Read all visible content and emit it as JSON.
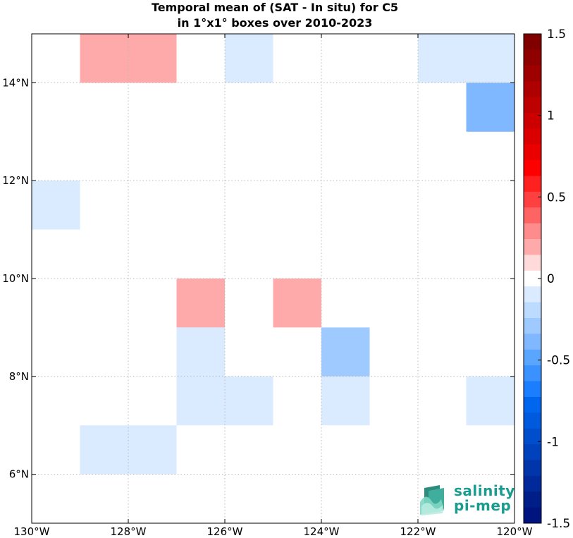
{
  "chart_data": {
    "type": "heatmap",
    "title_line1": "Temporal mean of (SAT - In situ) for C5",
    "title_line2": "in 1°x1° boxes over 2010-2023",
    "x_range": [
      -130,
      -120
    ],
    "y_range": [
      5,
      15
    ],
    "x_ticks": [
      {
        "value": -130,
        "label": "130°W"
      },
      {
        "value": -128,
        "label": "128°W"
      },
      {
        "value": -126,
        "label": "126°W"
      },
      {
        "value": -124,
        "label": "124°W"
      },
      {
        "value": -122,
        "label": "122°W"
      },
      {
        "value": -120,
        "label": "120°W"
      }
    ],
    "y_ticks": [
      {
        "value": 6,
        "label": "6°N"
      },
      {
        "value": 8,
        "label": "8°N"
      },
      {
        "value": 10,
        "label": "10°N"
      },
      {
        "value": 12,
        "label": "12°N"
      },
      {
        "value": 14,
        "label": "14°N"
      }
    ],
    "grid": true,
    "cells": [
      {
        "lon": -129,
        "lat": 14,
        "value": 0.15
      },
      {
        "lon": -128,
        "lat": 14,
        "value": 0.15
      },
      {
        "lon": -126,
        "lat": 14,
        "value": -0.1
      },
      {
        "lon": -122,
        "lat": 14,
        "value": -0.1
      },
      {
        "lon": -121,
        "lat": 14,
        "value": -0.1
      },
      {
        "lon": -121,
        "lat": 13,
        "value": -0.4
      },
      {
        "lon": -130,
        "lat": 11,
        "value": -0.1
      },
      {
        "lon": -127,
        "lat": 9,
        "value": 0.15
      },
      {
        "lon": -125,
        "lat": 9,
        "value": 0.15
      },
      {
        "lon": -127,
        "lat": 8,
        "value": -0.1
      },
      {
        "lon": -124,
        "lat": 8,
        "value": -0.25
      },
      {
        "lon": -127,
        "lat": 7,
        "value": -0.1
      },
      {
        "lon": -126,
        "lat": 7,
        "value": -0.1
      },
      {
        "lon": -124,
        "lat": 7,
        "value": -0.1
      },
      {
        "lon": -121,
        "lat": 7,
        "value": -0.1
      },
      {
        "lon": -129,
        "lat": 6,
        "value": -0.1
      },
      {
        "lon": -128,
        "lat": 6,
        "value": -0.1
      }
    ],
    "colorbar": {
      "min": -1.5,
      "max": 1.5,
      "ticks": [
        {
          "value": 1.5,
          "label": "1.5"
        },
        {
          "value": 1,
          "label": "1"
        },
        {
          "value": 0.5,
          "label": "0.5"
        },
        {
          "value": 0,
          "label": "0"
        },
        {
          "value": -0.5,
          "label": "-0.5"
        },
        {
          "value": -1,
          "label": "-1"
        },
        {
          "value": -1.5,
          "label": "-1.5"
        }
      ],
      "colors_top_to_bottom": [
        "#800000",
        "#8f0000",
        "#9e0000",
        "#ae0000",
        "#bd0000",
        "#cc0000",
        "#db0000",
        "#eb0000",
        "#ff0000",
        "#ff2020",
        "#ff4040",
        "#ff6464",
        "#ff8c8c",
        "#ffaaaa",
        "#ffdada",
        "#ffffff",
        "#daeaff",
        "#bcdbff",
        "#9ecaff",
        "#80b8ff",
        "#5aa6ff",
        "#3a92ff",
        "#1a7eff",
        "#0066ee",
        "#005add",
        "#004ecc",
        "#0042bb",
        "#0036aa",
        "#002a99",
        "#001e88",
        "#001480"
      ]
    }
  },
  "logo": {
    "line1": "salinity",
    "line2": "pi-mep"
  }
}
